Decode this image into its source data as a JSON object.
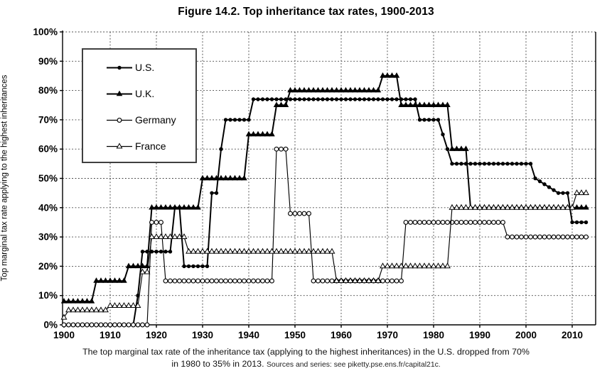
{
  "figure": {
    "caption_line1": "The top marginal tax rate of the inheritance tax (applying to the highest inheritances) in the U.S. dropped from 70%",
    "caption_line2": "in 1980 to 35% in 2013.",
    "caption_source": "Sources and series: see piketty.pse.ens.fr/capital21c."
  },
  "chart_data": {
    "type": "line",
    "title": "Figure 14.2. Top inheritance tax rates, 1900-2013",
    "xlabel": "",
    "ylabel": "Top marginal tax rate applying to the highest inheritances",
    "x_range": [
      1900,
      2013
    ],
    "xlim": [
      1900,
      2015
    ],
    "ylim": [
      0,
      100
    ],
    "x_ticks": [
      1900,
      1910,
      1920,
      1930,
      1940,
      1950,
      1960,
      1970,
      1980,
      1990,
      2000,
      2010
    ],
    "y_ticks": [
      0,
      10,
      20,
      30,
      40,
      50,
      60,
      70,
      80,
      90,
      100
    ],
    "y_tick_suffix": "%",
    "grid": {
      "horizontal": true,
      "vertical": true,
      "style": "dotted"
    },
    "legend": {
      "position": "upper-left",
      "boxed": true
    },
    "colors": {
      "ink": "#000000",
      "background": "#ffffff",
      "grid": "#3c3c3c"
    },
    "series": [
      {
        "name": "U.S.",
        "marker": "filled-circle",
        "values_by_period": [
          [
            1900,
            1915,
            0
          ],
          [
            1916,
            1916,
            10
          ],
          [
            1917,
            1923,
            25
          ],
          [
            1924,
            1925,
            40
          ],
          [
            1926,
            1931,
            20
          ],
          [
            1932,
            1933,
            45
          ],
          [
            1934,
            1934,
            60
          ],
          [
            1935,
            1940,
            70
          ],
          [
            1941,
            1976,
            77
          ],
          [
            1977,
            1981,
            70
          ],
          [
            1982,
            1982,
            65
          ],
          [
            1983,
            1983,
            60
          ],
          [
            1984,
            2001,
            55
          ],
          [
            2002,
            2002,
            50
          ],
          [
            2003,
            2003,
            49
          ],
          [
            2004,
            2004,
            48
          ],
          [
            2005,
            2005,
            47
          ],
          [
            2006,
            2006,
            46
          ],
          [
            2007,
            2009,
            45
          ],
          [
            2010,
            2013,
            35
          ]
        ]
      },
      {
        "name": "U.K.",
        "marker": "filled-triangle",
        "values_by_period": [
          [
            1900,
            1906,
            8
          ],
          [
            1907,
            1913,
            15
          ],
          [
            1914,
            1918,
            20
          ],
          [
            1919,
            1929,
            40
          ],
          [
            1930,
            1939,
            50
          ],
          [
            1940,
            1945,
            65
          ],
          [
            1946,
            1948,
            75
          ],
          [
            1949,
            1968,
            80
          ],
          [
            1969,
            1972,
            85
          ],
          [
            1973,
            1983,
            75
          ],
          [
            1984,
            1987,
            60
          ],
          [
            1988,
            2013,
            40
          ]
        ]
      },
      {
        "name": "Germany",
        "marker": "open-circle",
        "values_by_period": [
          [
            1900,
            1918,
            0
          ],
          [
            1919,
            1921,
            35
          ],
          [
            1922,
            1945,
            15
          ],
          [
            1946,
            1948,
            60
          ],
          [
            1949,
            1953,
            38
          ],
          [
            1954,
            1973,
            15
          ],
          [
            1974,
            1995,
            35
          ],
          [
            1996,
            2013,
            30
          ]
        ]
      },
      {
        "name": "France",
        "marker": "open-triangle",
        "values_by_period": [
          [
            1900,
            1900,
            2.5
          ],
          [
            1901,
            1909,
            5
          ],
          [
            1910,
            1916,
            6.5
          ],
          [
            1917,
            1918,
            18
          ],
          [
            1919,
            1926,
            30
          ],
          [
            1927,
            1958,
            25
          ],
          [
            1959,
            1968,
            15
          ],
          [
            1969,
            1983,
            20
          ],
          [
            1984,
            2010,
            40
          ],
          [
            2011,
            2013,
            45
          ]
        ]
      }
    ]
  }
}
